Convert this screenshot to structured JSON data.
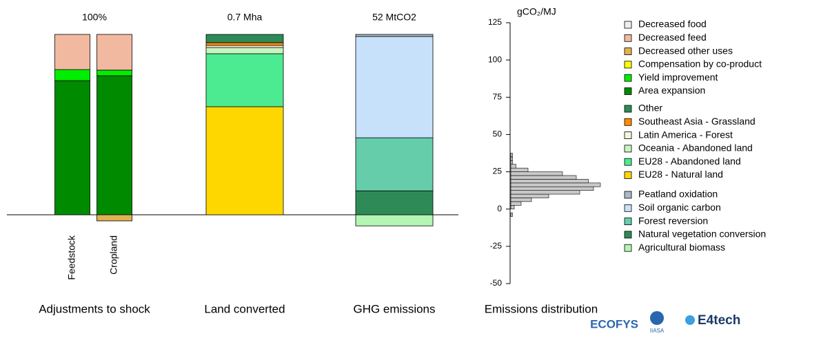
{
  "chart_data": [
    {
      "type": "stacked_bar",
      "subtitle": "100%",
      "title": "Adjustments to shock",
      "categories": [
        "Feedstock",
        "Cropland"
      ],
      "series": [
        {
          "name": "Decreased food",
          "color": "#eeeeee",
          "values": [
            0,
            0
          ]
        },
        {
          "name": "Decreased feed",
          "color": "#f2b9a1",
          "values": [
            19.5,
            19.8
          ]
        },
        {
          "name": "Decreased other uses",
          "color": "#e1b152",
          "values": [
            0,
            -3.4
          ]
        },
        {
          "name": "Compensation by co-product",
          "color": "#ffff00",
          "values": [
            0,
            0
          ]
        },
        {
          "name": "Yield improvement",
          "color": "#00ee00",
          "values": [
            6.1,
            3.1
          ]
        },
        {
          "name": "Area expansion",
          "color": "#008a00",
          "values": [
            74.4,
            77.1
          ]
        }
      ]
    },
    {
      "type": "stacked_bar",
      "subtitle": "0.7 Mha",
      "title": "Land converted",
      "categories": [
        null
      ],
      "series": [
        {
          "name": "Other",
          "color": "#2e8b57",
          "values": [
            0.032
          ]
        },
        {
          "name": "Southeast Asia - Grassland",
          "color": "#ff8c00",
          "values": [
            0.011
          ]
        },
        {
          "name": "Latin America - Forest",
          "color": "#f5f5dc",
          "values": [
            0.008
          ]
        },
        {
          "name": "Oceania - Abandoned land",
          "color": "#c8f5c0",
          "values": [
            0.024
          ]
        },
        {
          "name": "EU28 - Abandoned land",
          "color": "#4deb91",
          "values": [
            0.206
          ]
        },
        {
          "name": "EU28 - Natural land",
          "color": "#ffd700",
          "values": [
            0.42
          ]
        }
      ]
    },
    {
      "type": "stacked_bar",
      "subtitle": "52 MtCO2",
      "title": "GHG emissions",
      "categories": [
        null
      ],
      "series": [
        {
          "name": "Peatland oxidation",
          "color": "#a9b9c9",
          "values": [
            0.6
          ]
        },
        {
          "name": "Soil organic carbon",
          "color": "#c8e1fa",
          "values": [
            29.2
          ]
        },
        {
          "name": "Forest reversion",
          "color": "#66cdaa",
          "values": [
            15.3
          ]
        },
        {
          "name": "Natural vegetation conversion",
          "color": "#2e8b57",
          "values": [
            6.9
          ]
        },
        {
          "name": "Agricultural biomass",
          "color": "#b3f5b3",
          "values": [
            -3.2
          ]
        }
      ]
    },
    {
      "type": "histogram",
      "title": "Emissions distribution",
      "y_label": "gCO₂/MJ",
      "color": "#c8c8c8",
      "bins": [
        -5,
        -2.5,
        0,
        2.5,
        5,
        7.5,
        10,
        12.5,
        15,
        17.5,
        20,
        22.5,
        25,
        27.5,
        30,
        32.5,
        35,
        37.5
      ],
      "counts": [
        1,
        0,
        2,
        6,
        12,
        22,
        40,
        48,
        52,
        45,
        38,
        30,
        10,
        3,
        1,
        1,
        1
      ],
      "ylim": [
        -50,
        125
      ],
      "yticks": [
        -50,
        -25,
        0,
        25,
        50,
        75,
        100,
        125
      ]
    }
  ],
  "logos": [
    "ECOFYS",
    "IIASA",
    "E4tech"
  ]
}
